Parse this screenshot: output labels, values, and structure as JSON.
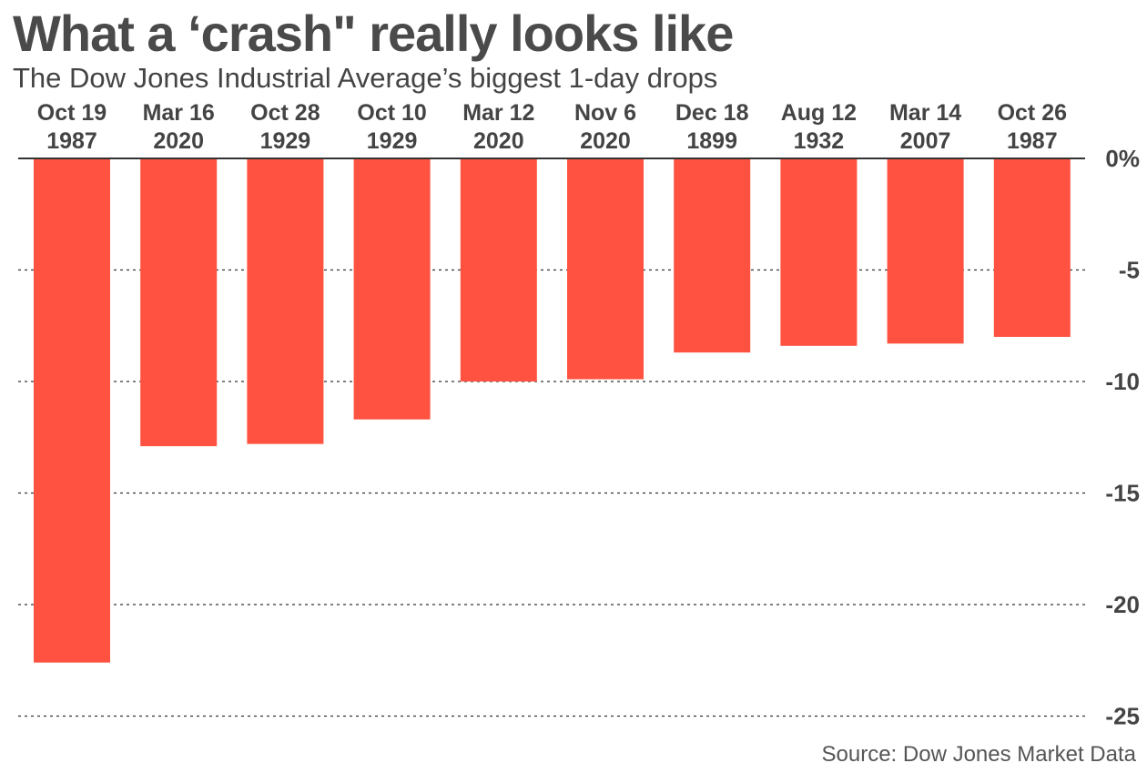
{
  "title": "What a ‘crash\" really looks like",
  "subtitle": "The Dow Jones Industrial Average’s biggest 1-day drops",
  "source": "Source: Dow Jones Market Data",
  "colors": {
    "bar": "#ff5240",
    "text": "#444444",
    "grid": "#333333"
  },
  "chart_data": {
    "type": "bar",
    "title": "What a ‘crash\" really looks like",
    "subtitle": "The Dow Jones Industrial Average’s biggest 1-day drops",
    "categories": [
      [
        "Oct 19",
        "1987"
      ],
      [
        "Mar 16",
        "2020"
      ],
      [
        "Oct 28",
        "1929"
      ],
      [
        "Oct 10",
        "1929"
      ],
      [
        "Mar 12",
        "2020"
      ],
      [
        "Nov 6",
        "2020"
      ],
      [
        "Dec 18",
        "1899"
      ],
      [
        "Aug 12",
        "1932"
      ],
      [
        "Mar 14",
        "2007"
      ],
      [
        "Oct 26",
        "1987"
      ]
    ],
    "values": [
      -22.6,
      -12.9,
      -12.8,
      -11.7,
      -10.0,
      -9.9,
      -8.7,
      -8.4,
      -8.3,
      -8.0
    ],
    "y_ticks": [
      0,
      -5,
      -10,
      -15,
      -20,
      -25
    ],
    "y_tick_labels": [
      "0%",
      "-5",
      "-10",
      "-15",
      "-20",
      "-25"
    ],
    "ylim": [
      -25,
      0
    ],
    "xlabel": "",
    "ylabel": "",
    "grid": "dotted horizontal",
    "category_label_position": "top"
  }
}
